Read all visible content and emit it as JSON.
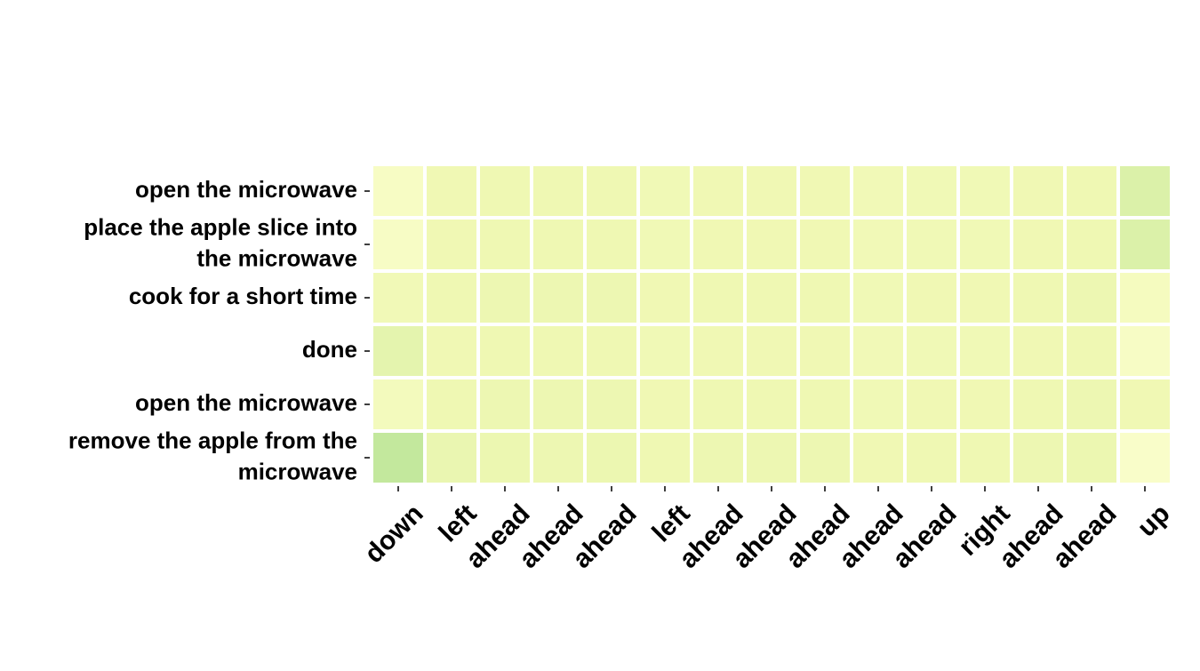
{
  "chart_data": {
    "type": "heatmap",
    "title": "",
    "xlabel": "",
    "ylabel": "",
    "grid": false,
    "legend": "none",
    "colorbar": false,
    "x_categories": [
      "down",
      "left",
      "ahead",
      "ahead",
      "ahead",
      "left",
      "ahead",
      "ahead",
      "ahead",
      "ahead",
      "ahead",
      "right",
      "ahead",
      "ahead",
      "up"
    ],
    "y_categories": [
      "open the microwave",
      "place the apple slice into the microwave",
      "cook for a short time",
      "done",
      "open the microwave",
      "remove the apple from the microwave"
    ],
    "y_label_lines": [
      [
        "open the microwave"
      ],
      [
        "place the apple slice into",
        "the microwave"
      ],
      [
        "cook for a short time"
      ],
      [
        "done"
      ],
      [
        "open the microwave"
      ],
      [
        "remove the apple from the",
        "microwave"
      ]
    ],
    "values": [
      [
        0.05,
        0.16,
        0.17,
        0.17,
        0.17,
        0.15,
        0.16,
        0.16,
        0.16,
        0.14,
        0.15,
        0.15,
        0.16,
        0.17,
        0.3
      ],
      [
        0.04,
        0.16,
        0.17,
        0.17,
        0.17,
        0.15,
        0.16,
        0.16,
        0.16,
        0.14,
        0.15,
        0.15,
        0.16,
        0.17,
        0.3
      ],
      [
        0.14,
        0.17,
        0.18,
        0.18,
        0.18,
        0.16,
        0.17,
        0.17,
        0.17,
        0.15,
        0.16,
        0.16,
        0.17,
        0.18,
        0.08
      ],
      [
        0.24,
        0.16,
        0.17,
        0.17,
        0.17,
        0.15,
        0.16,
        0.16,
        0.16,
        0.14,
        0.15,
        0.15,
        0.16,
        0.17,
        0.04
      ],
      [
        0.1,
        0.17,
        0.18,
        0.18,
        0.18,
        0.16,
        0.17,
        0.17,
        0.17,
        0.15,
        0.16,
        0.16,
        0.17,
        0.18,
        0.16
      ],
      [
        0.45,
        0.2,
        0.19,
        0.18,
        0.19,
        0.17,
        0.18,
        0.18,
        0.18,
        0.16,
        0.17,
        0.17,
        0.18,
        0.19,
        0.01
      ]
    ],
    "color_scale": {
      "low": "#f9fdc9",
      "mid": "#eff8b3",
      "high": "#c3e89d"
    }
  }
}
